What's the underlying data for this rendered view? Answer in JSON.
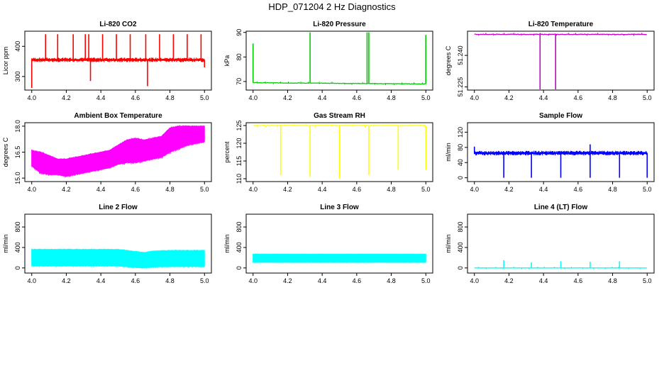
{
  "figure": {
    "title": "HDP_071204  2 Hz Diagnostics"
  },
  "chart_data": [
    {
      "type": "line",
      "title": "Li-820 CO2",
      "xlabel": "",
      "ylabel": "Licor ppm",
      "color": "#ff0000",
      "xlim": [
        3.96,
        5.04
      ],
      "ylim": [
        255,
        450
      ],
      "xticks": [
        "4.0",
        "4.2",
        "4.4",
        "4.6",
        "4.8",
        "5.0"
      ],
      "yticks": [
        300,
        400
      ],
      "ytick_labels": [
        "300",
        "400"
      ],
      "baseline": 355,
      "noise": 5,
      "style": "dense",
      "spikes": [
        {
          "x": 4.0,
          "y": 262
        },
        {
          "x": 4.08,
          "y": 440
        },
        {
          "x": 4.15,
          "y": 440
        },
        {
          "x": 4.24,
          "y": 440
        },
        {
          "x": 4.31,
          "y": 440
        },
        {
          "x": 4.33,
          "y": 440
        },
        {
          "x": 4.34,
          "y": 285
        },
        {
          "x": 4.41,
          "y": 440
        },
        {
          "x": 4.49,
          "y": 440
        },
        {
          "x": 4.57,
          "y": 440
        },
        {
          "x": 4.66,
          "y": 440
        },
        {
          "x": 4.67,
          "y": 268
        },
        {
          "x": 4.74,
          "y": 440
        },
        {
          "x": 4.82,
          "y": 440
        },
        {
          "x": 4.9,
          "y": 440
        },
        {
          "x": 4.98,
          "y": 440
        },
        {
          "x": 5.0,
          "y": 330
        }
      ]
    },
    {
      "type": "line",
      "title": "Li-820 Pressure",
      "xlabel": "",
      "ylabel": "kPa",
      "color": "#00cc00",
      "xlim": [
        3.96,
        5.04
      ],
      "ylim": [
        66.5,
        90.5
      ],
      "xticks": [
        "4.0",
        "4.2",
        "4.4",
        "4.6",
        "4.8",
        "5.0"
      ],
      "yticks": [
        70,
        80,
        90
      ],
      "ytick_labels": [
        "70",
        "80",
        "90"
      ],
      "baseline": 69.5,
      "baseline_end": 69,
      "noise": 0.2,
      "style": "thin",
      "spikes": [
        {
          "x": 4.0,
          "y": 85.5
        },
        {
          "x": 4.33,
          "y": 90
        },
        {
          "x": 4.66,
          "y": 90
        },
        {
          "x": 4.67,
          "y": 90
        },
        {
          "x": 5.0,
          "y": 89
        }
      ]
    },
    {
      "type": "line",
      "title": "Li-820 Temperature",
      "xlabel": "",
      "ylabel": "degrees C",
      "color": "#cc00cc",
      "xlim": [
        3.96,
        5.04
      ],
      "ylim": [
        51.2235,
        51.2515
      ],
      "xticks": [
        "4.0",
        "4.2",
        "4.4",
        "4.6",
        "4.8",
        "5.0"
      ],
      "yticks": [
        51.225,
        51.24
      ],
      "ytick_labels": [
        "51.225",
        "51.240"
      ],
      "baseline": 51.25,
      "noise": 0.00025,
      "style": "thin",
      "spikes": [
        {
          "x": 4.38,
          "y": 51.2235
        },
        {
          "x": 4.47,
          "y": 51.2235
        }
      ]
    },
    {
      "type": "line",
      "title": "Ambient Box Temperature",
      "xlabel": "",
      "ylabel": "degrees C",
      "color": "#ff00ff",
      "xlim": [
        3.96,
        5.04
      ],
      "ylim": [
        14.8,
        18.2
      ],
      "xticks": [
        "4.0",
        "4.2",
        "4.4",
        "4.6",
        "4.8",
        "5.0"
      ],
      "yticks": [
        15.0,
        16.5,
        18.0
      ],
      "ytick_labels": [
        "15.0",
        "16.5",
        "18.0"
      ],
      "style": "band",
      "band_x": [
        4.0,
        4.05,
        4.1,
        4.15,
        4.2,
        4.25,
        4.3,
        4.35,
        4.4,
        4.45,
        4.5,
        4.55,
        4.6,
        4.65,
        4.7,
        4.75,
        4.8,
        4.85,
        4.9,
        4.95,
        5.0
      ],
      "band_lower": [
        15.7,
        15.3,
        15.2,
        15.2,
        15.1,
        15.2,
        15.3,
        15.4,
        15.5,
        15.6,
        15.8,
        15.9,
        15.9,
        16.0,
        16.1,
        16.2,
        16.5,
        16.7,
        16.9,
        17.0,
        17.1
      ],
      "band_upper": [
        16.6,
        16.5,
        16.3,
        16.1,
        16.1,
        16.2,
        16.3,
        16.4,
        16.5,
        16.6,
        16.9,
        17.2,
        17.3,
        17.2,
        17.3,
        17.4,
        17.9,
        18.0,
        18.0,
        18.0,
        18.0
      ],
      "spikes": []
    },
    {
      "type": "line",
      "title": "Gas Stream RH",
      "xlabel": "",
      "ylabel": "percent",
      "color": "#ffff00",
      "xlim": [
        3.96,
        5.04
      ],
      "ylim": [
        109.2,
        125.8
      ],
      "xticks": [
        "4.0",
        "4.2",
        "4.4",
        "4.6",
        "4.8",
        "5.0"
      ],
      "yticks": [
        110,
        115,
        120,
        125
      ],
      "ytick_labels": [
        "110",
        "115",
        "120",
        "125"
      ],
      "baseline": 125,
      "noise": 0.1,
      "style": "thin",
      "spikes": [
        {
          "x": 4.16,
          "y": 111
        },
        {
          "x": 4.33,
          "y": 110.5
        },
        {
          "x": 4.5,
          "y": 110
        },
        {
          "x": 4.67,
          "y": 111
        },
        {
          "x": 4.84,
          "y": 112.5
        },
        {
          "x": 5.0,
          "y": 112.5
        }
      ]
    },
    {
      "type": "line",
      "title": "Sample Flow",
      "xlabel": "",
      "ylabel": "ml/min",
      "color": "#0000ff",
      "xlim": [
        3.96,
        5.04
      ],
      "ylim": [
        -10,
        145
      ],
      "xticks": [
        "4.0",
        "4.2",
        "4.4",
        "4.6",
        "4.8",
        "5.0"
      ],
      "yticks": [
        0,
        40,
        80,
        120
      ],
      "ytick_labels": [
        "0",
        "40",
        "80",
        "120"
      ],
      "baseline": 65,
      "baseline_end": 65,
      "noise": 4,
      "style": "dense",
      "spikes": [
        {
          "x": 4.0,
          "y": 82
        },
        {
          "x": 4.17,
          "y": 0
        },
        {
          "x": 4.33,
          "y": 0
        },
        {
          "x": 4.5,
          "y": 0
        },
        {
          "x": 4.67,
          "y": 0
        },
        {
          "x": 4.67,
          "y": 88
        },
        {
          "x": 4.84,
          "y": 0
        },
        {
          "x": 5.0,
          "y": 0
        }
      ]
    },
    {
      "type": "line",
      "title": "Line 2 Flow",
      "xlabel": "",
      "ylabel": "ml/min",
      "color": "#00ffff",
      "xlim": [
        3.96,
        5.04
      ],
      "ylim": [
        -100,
        1050
      ],
      "xticks": [
        "4.0",
        "4.2",
        "4.4",
        "4.6",
        "4.8",
        "5.0"
      ],
      "yticks": [
        0,
        400,
        800
      ],
      "ytick_labels": [
        "0",
        "400",
        "800"
      ],
      "style": "band",
      "band_x": [
        4.0,
        4.1,
        4.2,
        4.3,
        4.4,
        4.5,
        4.6,
        4.65,
        4.7,
        4.8,
        4.9,
        5.0
      ],
      "band_lower": [
        40,
        40,
        40,
        40,
        40,
        40,
        10,
        0,
        20,
        30,
        30,
        30
      ],
      "band_upper": [
        360,
        360,
        360,
        360,
        360,
        360,
        320,
        300,
        330,
        340,
        340,
        340
      ],
      "spikes": []
    },
    {
      "type": "line",
      "title": "Line 3 Flow",
      "xlabel": "",
      "ylabel": "ml/min",
      "color": "#00ffff",
      "xlim": [
        3.96,
        5.04
      ],
      "ylim": [
        -100,
        1050
      ],
      "xticks": [
        "4.0",
        "4.2",
        "4.4",
        "4.6",
        "4.8",
        "5.0"
      ],
      "yticks": [
        0,
        400,
        800
      ],
      "ytick_labels": [
        "0",
        "400",
        "800"
      ],
      "style": "band",
      "band_x": [
        4.0,
        5.0
      ],
      "band_lower": [
        110,
        110
      ],
      "band_upper": [
        270,
        270
      ],
      "spikes": []
    },
    {
      "type": "line",
      "title": "Line 4 (LT) Flow",
      "xlabel": "",
      "ylabel": "ml/min",
      "color": "#00ffff",
      "xlim": [
        3.96,
        5.04
      ],
      "ylim": [
        -100,
        1050
      ],
      "xticks": [
        "4.0",
        "4.2",
        "4.4",
        "4.6",
        "4.8",
        "5.0"
      ],
      "yticks": [
        0,
        400,
        800
      ],
      "ytick_labels": [
        "0",
        "400",
        "800"
      ],
      "baseline": 0,
      "noise": 2,
      "style": "thin",
      "spikes": [
        {
          "x": 4.17,
          "y": 150
        },
        {
          "x": 4.33,
          "y": 110
        },
        {
          "x": 4.5,
          "y": 130
        },
        {
          "x": 4.67,
          "y": 120
        },
        {
          "x": 4.84,
          "y": 130
        }
      ]
    }
  ]
}
